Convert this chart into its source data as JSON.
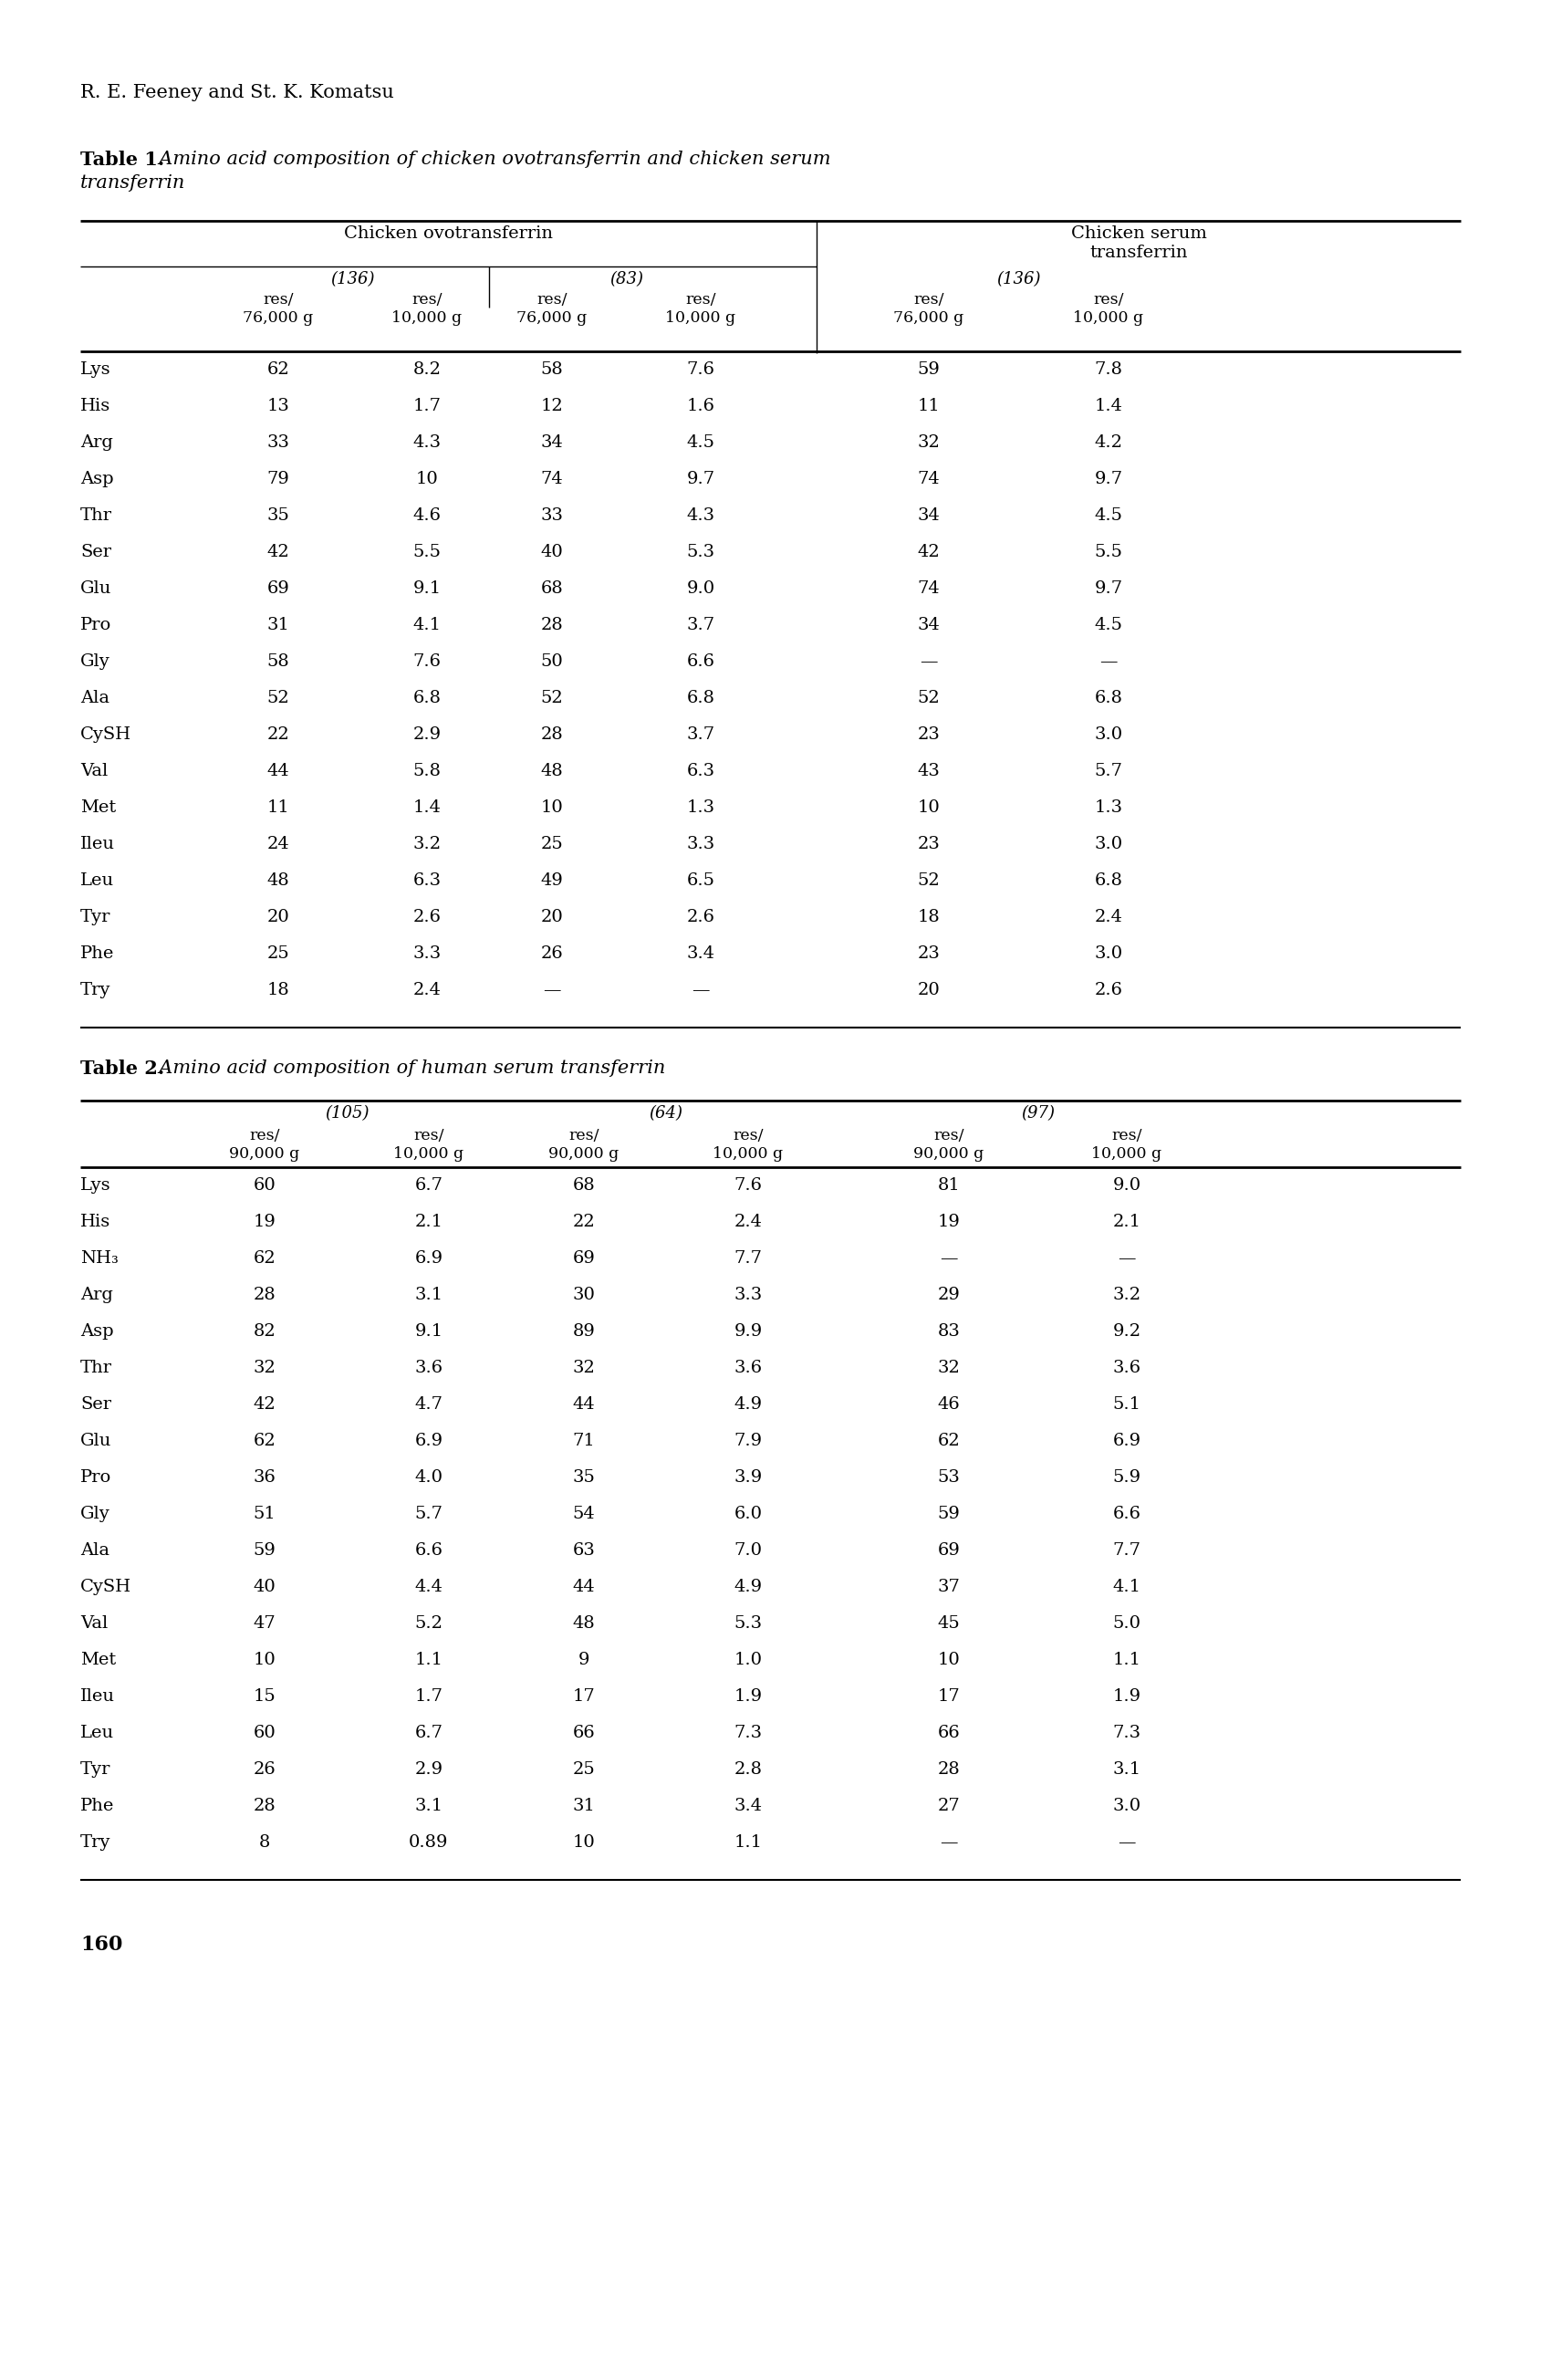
{
  "header_author": "R. E. Feeney and St. K. Komatsu",
  "table1_caption_bold": "Table 1.",
  "table1_caption_italic_line1": "  Amino acid composition of chicken ovotransferrin and chicken serum",
  "table1_caption_italic_line2": "transferrin",
  "table2_caption_bold": "Table 2.",
  "table2_caption_italic": "  Amino acid composition of human serum transferrin",
  "footer": "160",
  "t1_col1_header": "Chicken ovotransferrin",
  "t1_col2_header": "Chicken serum\ntransferrin",
  "t1_sg1": "(136)",
  "t1_sg2": "(83)",
  "t1_sg3": "(136)",
  "t1_ch": [
    "res/",
    "76,000 g",
    "res/",
    "10,000 g",
    "res/",
    "76,000 g",
    "res/",
    "10,000 g",
    "res/",
    "76,000 g",
    "res/",
    "10,000 g"
  ],
  "table1_rows": [
    [
      "Lys",
      "62",
      "8.2",
      "58",
      "7.6",
      "59",
      "7.8"
    ],
    [
      "His",
      "13",
      "1.7",
      "12",
      "1.6",
      "11",
      "1.4"
    ],
    [
      "Arg",
      "33",
      "4.3",
      "34",
      "4.5",
      "32",
      "4.2"
    ],
    [
      "Asp",
      "79",
      "10",
      "74",
      "9.7",
      "74",
      "9.7"
    ],
    [
      "Thr",
      "35",
      "4.6",
      "33",
      "4.3",
      "34",
      "4.5"
    ],
    [
      "Ser",
      "42",
      "5.5",
      "40",
      "5.3",
      "42",
      "5.5"
    ],
    [
      "Glu",
      "69",
      "9.1",
      "68",
      "9.0",
      "74",
      "9.7"
    ],
    [
      "Pro",
      "31",
      "4.1",
      "28",
      "3.7",
      "34",
      "4.5"
    ],
    [
      "Gly",
      "58",
      "7.6",
      "50",
      "6.6",
      "—",
      "—"
    ],
    [
      "Ala",
      "52",
      "6.8",
      "52",
      "6.8",
      "52",
      "6.8"
    ],
    [
      "CySH",
      "22",
      "2.9",
      "28",
      "3.7",
      "23",
      "3.0"
    ],
    [
      "Val",
      "44",
      "5.8",
      "48",
      "6.3",
      "43",
      "5.7"
    ],
    [
      "Met",
      "11",
      "1.4",
      "10",
      "1.3",
      "10",
      "1.3"
    ],
    [
      "Ileu",
      "24",
      "3.2",
      "25",
      "3.3",
      "23",
      "3.0"
    ],
    [
      "Leu",
      "48",
      "6.3",
      "49",
      "6.5",
      "52",
      "6.8"
    ],
    [
      "Tyr",
      "20",
      "2.6",
      "20",
      "2.6",
      "18",
      "2.4"
    ],
    [
      "Phe",
      "25",
      "3.3",
      "26",
      "3.4",
      "23",
      "3.0"
    ],
    [
      "Try",
      "18",
      "2.4",
      "—",
      "—",
      "20",
      "2.6"
    ]
  ],
  "t2_sg1": "(105)",
  "t2_sg2": "(64)",
  "t2_sg3": "(97)",
  "table2_rows": [
    [
      "Lys",
      "60",
      "6.7",
      "68",
      "7.6",
      "81",
      "9.0"
    ],
    [
      "His",
      "19",
      "2.1",
      "22",
      "2.4",
      "19",
      "2.1"
    ],
    [
      "NH₃",
      "62",
      "6.9",
      "69",
      "7.7",
      "—",
      "—"
    ],
    [
      "Arg",
      "28",
      "3.1",
      "30",
      "3.3",
      "29",
      "3.2"
    ],
    [
      "Asp",
      "82",
      "9.1",
      "89",
      "9.9",
      "83",
      "9.2"
    ],
    [
      "Thr",
      "32",
      "3.6",
      "32",
      "3.6",
      "32",
      "3.6"
    ],
    [
      "Ser",
      "42",
      "4.7",
      "44",
      "4.9",
      "46",
      "5.1"
    ],
    [
      "Glu",
      "62",
      "6.9",
      "71",
      "7.9",
      "62",
      "6.9"
    ],
    [
      "Pro",
      "36",
      "4.0",
      "35",
      "3.9",
      "53",
      "5.9"
    ],
    [
      "Gly",
      "51",
      "5.7",
      "54",
      "6.0",
      "59",
      "6.6"
    ],
    [
      "Ala",
      "59",
      "6.6",
      "63",
      "7.0",
      "69",
      "7.7"
    ],
    [
      "CySH",
      "40",
      "4.4",
      "44",
      "4.9",
      "37",
      "4.1"
    ],
    [
      "Val",
      "47",
      "5.2",
      "48",
      "5.3",
      "45",
      "5.0"
    ],
    [
      "Met",
      "10",
      "1.1",
      "9",
      "1.0",
      "10",
      "1.1"
    ],
    [
      "Ileu",
      "15",
      "1.7",
      "17",
      "1.9",
      "17",
      "1.9"
    ],
    [
      "Leu",
      "60",
      "6.7",
      "66",
      "7.3",
      "66",
      "7.3"
    ],
    [
      "Tyr",
      "26",
      "2.9",
      "25",
      "2.8",
      "28",
      "3.1"
    ],
    [
      "Phe",
      "28",
      "3.1",
      "31",
      "3.4",
      "27",
      "3.0"
    ],
    [
      "Try",
      "8",
      "0.89",
      "10",
      "1.1",
      "—",
      "—"
    ]
  ]
}
